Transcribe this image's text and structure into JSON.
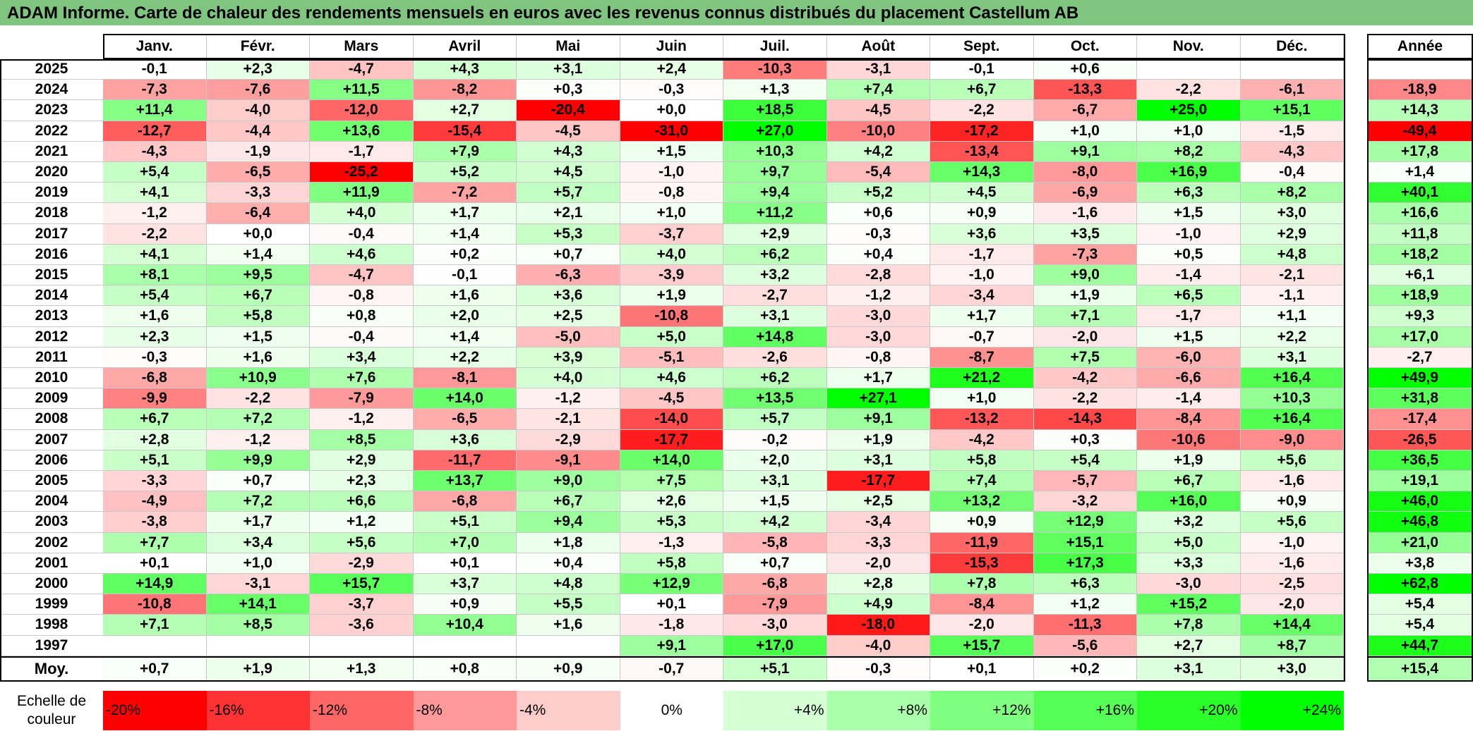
{
  "title": "ADAM Informe. Carte de chaleur des rendements mensuels en euros avec les revenus connus distribués du placement Castellum AB",
  "chart_data": {
    "type": "heatmap",
    "title": "ADAM Informe. Carte de chaleur des rendements mensuels en euros avec les revenus connus distribués du placement Castellum AB",
    "columns": [
      "Janv.",
      "Févr.",
      "Mars",
      "Avril",
      "Mai",
      "Juin",
      "Juil.",
      "Août",
      "Sept.",
      "Oct.",
      "Nov.",
      "Déc."
    ],
    "annual_header": "Année",
    "rows": [
      {
        "year": "2025",
        "values": [
          "-0,1",
          "+2,3",
          "-4,7",
          "+4,3",
          "+3,1",
          "+2,4",
          "-10,3",
          "-3,1",
          "-0,1",
          "+0,6",
          "",
          ""
        ],
        "annual": ""
      },
      {
        "year": "2024",
        "values": [
          "-7,3",
          "-7,6",
          "+11,5",
          "-8,2",
          "+0,3",
          "-0,3",
          "+1,3",
          "+7,4",
          "+6,7",
          "-13,3",
          "-2,2",
          "-6,1"
        ],
        "annual": "-18,9"
      },
      {
        "year": "2023",
        "values": [
          "+11,4",
          "-4,0",
          "-12,0",
          "+2,7",
          "-20,4",
          "+0,0",
          "+18,5",
          "-4,5",
          "-2,2",
          "-6,7",
          "+25,0",
          "+15,1"
        ],
        "annual": "+14,3"
      },
      {
        "year": "2022",
        "values": [
          "-12,7",
          "-4,4",
          "+13,6",
          "-15,4",
          "-4,5",
          "-31,0",
          "+27,0",
          "-10,0",
          "-17,2",
          "+1,0",
          "+1,0",
          "-1,5"
        ],
        "annual": "-49,4"
      },
      {
        "year": "2021",
        "values": [
          "-4,3",
          "-1,9",
          "-1,7",
          "+7,9",
          "+4,3",
          "+1,5",
          "+10,3",
          "+4,2",
          "-13,4",
          "+9,1",
          "+8,2",
          "-4,3"
        ],
        "annual": "+17,8"
      },
      {
        "year": "2020",
        "values": [
          "+5,4",
          "-6,5",
          "-25,2",
          "+5,2",
          "+4,5",
          "-1,0",
          "+9,7",
          "-5,4",
          "+14,3",
          "-8,0",
          "+16,9",
          "-0,4"
        ],
        "annual": "+1,4"
      },
      {
        "year": "2019",
        "values": [
          "+4,1",
          "-3,3",
          "+11,9",
          "-7,2",
          "+5,7",
          "-0,8",
          "+9,4",
          "+5,2",
          "+4,5",
          "-6,9",
          "+6,3",
          "+8,2"
        ],
        "annual": "+40,1"
      },
      {
        "year": "2018",
        "values": [
          "-1,2",
          "-6,4",
          "+4,0",
          "+1,7",
          "+2,1",
          "+1,0",
          "+11,2",
          "+0,6",
          "+0,9",
          "-1,6",
          "+1,5",
          "+3,0"
        ],
        "annual": "+16,6"
      },
      {
        "year": "2017",
        "values": [
          "-2,2",
          "+0,0",
          "-0,4",
          "+1,4",
          "+5,3",
          "-3,7",
          "+2,9",
          "-0,3",
          "+3,6",
          "+3,5",
          "-1,0",
          "+2,9"
        ],
        "annual": "+11,8"
      },
      {
        "year": "2016",
        "values": [
          "+4,1",
          "+1,4",
          "+4,6",
          "+0,2",
          "+0,7",
          "+4,0",
          "+6,2",
          "+0,4",
          "-1,7",
          "-7,3",
          "+0,5",
          "+4,8"
        ],
        "annual": "+18,2"
      },
      {
        "year": "2015",
        "values": [
          "+8,1",
          "+9,5",
          "-4,7",
          "-0,1",
          "-6,3",
          "-3,9",
          "+3,2",
          "-2,8",
          "-1,0",
          "+9,0",
          "-1,4",
          "-2,1"
        ],
        "annual": "+6,1"
      },
      {
        "year": "2014",
        "values": [
          "+5,4",
          "+6,7",
          "-0,8",
          "+1,6",
          "+3,6",
          "+1,9",
          "-2,7",
          "-1,2",
          "-3,4",
          "+1,9",
          "+6,5",
          "-1,1"
        ],
        "annual": "+18,9"
      },
      {
        "year": "2013",
        "values": [
          "+1,6",
          "+5,8",
          "+0,8",
          "+2,0",
          "+2,5",
          "-10,8",
          "+3,1",
          "-3,0",
          "+1,7",
          "+7,1",
          "-1,7",
          "+1,1"
        ],
        "annual": "+9,3"
      },
      {
        "year": "2012",
        "values": [
          "+2,3",
          "+1,5",
          "-0,4",
          "+1,4",
          "-5,0",
          "+5,0",
          "+14,8",
          "-3,0",
          "-0,7",
          "-2,0",
          "+1,5",
          "+2,2"
        ],
        "annual": "+17,0"
      },
      {
        "year": "2011",
        "values": [
          "-0,3",
          "+1,6",
          "+3,4",
          "+2,2",
          "+3,9",
          "-5,1",
          "-2,6",
          "-0,8",
          "-8,7",
          "+7,5",
          "-6,0",
          "+3,1"
        ],
        "annual": "-2,7"
      },
      {
        "year": "2010",
        "values": [
          "-6,8",
          "+10,9",
          "+7,6",
          "-8,1",
          "+4,0",
          "+4,6",
          "+6,2",
          "+1,7",
          "+21,2",
          "-4,2",
          "-6,6",
          "+16,4"
        ],
        "annual": "+49,9"
      },
      {
        "year": "2009",
        "values": [
          "-9,9",
          "-2,2",
          "-7,9",
          "+14,0",
          "-1,2",
          "-4,5",
          "+13,5",
          "+27,1",
          "+1,0",
          "-2,2",
          "-1,4",
          "+10,3"
        ],
        "annual": "+31,8"
      },
      {
        "year": "2008",
        "values": [
          "+6,7",
          "+7,2",
          "-1,2",
          "-6,5",
          "-2,1",
          "-14,0",
          "+5,7",
          "+9,1",
          "-13,2",
          "-14,3",
          "-8,4",
          "+16,4"
        ],
        "annual": "-17,4"
      },
      {
        "year": "2007",
        "values": [
          "+2,8",
          "-1,2",
          "+8,5",
          "+3,6",
          "-2,9",
          "-17,7",
          "-0,2",
          "+1,9",
          "-4,2",
          "+0,3",
          "-10,6",
          "-9,0"
        ],
        "annual": "-26,5"
      },
      {
        "year": "2006",
        "values": [
          "+5,1",
          "+9,9",
          "+2,9",
          "-11,7",
          "-9,1",
          "+14,0",
          "+2,0",
          "+3,1",
          "+5,8",
          "+5,4",
          "+1,9",
          "+5,6"
        ],
        "annual": "+36,5"
      },
      {
        "year": "2005",
        "values": [
          "-3,3",
          "+0,7",
          "+2,3",
          "+13,7",
          "+9,0",
          "+7,5",
          "+3,1",
          "-17,7",
          "+7,4",
          "-5,7",
          "+6,7",
          "-1,6"
        ],
        "annual": "+19,1"
      },
      {
        "year": "2004",
        "values": [
          "-4,9",
          "+7,2",
          "+6,6",
          "-6,8",
          "+6,7",
          "+2,6",
          "+1,5",
          "+2,5",
          "+13,2",
          "-3,2",
          "+16,0",
          "+0,9"
        ],
        "annual": "+46,0"
      },
      {
        "year": "2003",
        "values": [
          "-3,8",
          "+1,7",
          "+1,2",
          "+5,1",
          "+9,4",
          "+5,3",
          "+4,2",
          "-3,4",
          "+0,9",
          "+12,9",
          "+3,2",
          "+5,6"
        ],
        "annual": "+46,8"
      },
      {
        "year": "2002",
        "values": [
          "+7,7",
          "+3,4",
          "+5,6",
          "+7,0",
          "+1,8",
          "-1,3",
          "-5,8",
          "-3,3",
          "-11,9",
          "+15,1",
          "+5,0",
          "-1,0"
        ],
        "annual": "+21,0"
      },
      {
        "year": "2001",
        "values": [
          "+0,1",
          "+1,0",
          "-2,9",
          "+0,1",
          "+0,4",
          "+5,8",
          "+0,7",
          "-2,0",
          "-15,3",
          "+17,3",
          "+3,3",
          "-1,6"
        ],
        "annual": "+3,8"
      },
      {
        "year": "2000",
        "values": [
          "+14,9",
          "-3,1",
          "+15,7",
          "+3,7",
          "+4,8",
          "+12,9",
          "-6,8",
          "+2,8",
          "+7,8",
          "+6,3",
          "-3,0",
          "-2,5"
        ],
        "annual": "+62,8"
      },
      {
        "year": "1999",
        "values": [
          "-10,8",
          "+14,1",
          "-3,7",
          "+0,9",
          "+5,5",
          "+0,1",
          "-7,9",
          "+4,9",
          "-8,4",
          "+1,2",
          "+15,2",
          "-2,0"
        ],
        "annual": "+5,4"
      },
      {
        "year": "1998",
        "values": [
          "+7,1",
          "+8,5",
          "-3,6",
          "+10,4",
          "+1,6",
          "-1,8",
          "-3,0",
          "-18,0",
          "-2,0",
          "-11,3",
          "+7,8",
          "+14,4"
        ],
        "annual": "+5,4"
      },
      {
        "year": "1997",
        "values": [
          "",
          "",
          "",
          "",
          "",
          "+9,1",
          "+17,0",
          "-4,0",
          "+15,7",
          "-5,6",
          "+2,7",
          "+8,7"
        ],
        "annual": "+44,7"
      }
    ],
    "average": {
      "label": "Moy.",
      "values": [
        "+0,7",
        "+1,9",
        "+1,3",
        "+0,8",
        "+0,9",
        "-0,7",
        "+5,1",
        "-0,3",
        "+0,1",
        "+0,2",
        "+3,1",
        "+3,0"
      ],
      "annual": "+15,4"
    },
    "color_scale": {
      "label": "Echelle de couleur",
      "stops": [
        "-20%",
        "-16%",
        "-12%",
        "-8%",
        "-4%",
        "0%",
        "+4%",
        "+8%",
        "+12%",
        "+16%",
        "+20%",
        "+24%"
      ],
      "negative_color": "#ff0000",
      "neutral_color": "#ffffff",
      "positive_color": "#00ff00"
    }
  }
}
